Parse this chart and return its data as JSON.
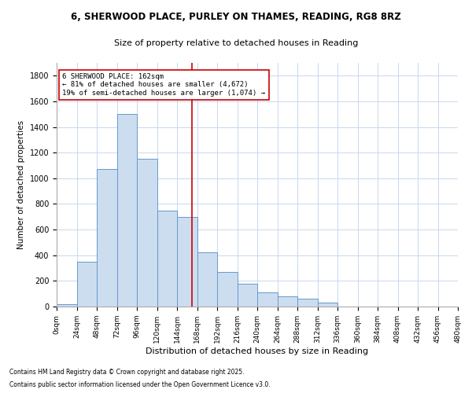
{
  "title_line1": "6, SHERWOOD PLACE, PURLEY ON THAMES, READING, RG8 8RZ",
  "title_line2": "Size of property relative to detached houses in Reading",
  "xlabel": "Distribution of detached houses by size in Reading",
  "ylabel": "Number of detached properties",
  "property_size": 162,
  "annotation_text": "6 SHERWOOD PLACE: 162sqm\n← 81% of detached houses are smaller (4,672)\n19% of semi-detached houses are larger (1,074) →",
  "footnote_line1": "Contains HM Land Registry data © Crown copyright and database right 2025.",
  "footnote_line2": "Contains public sector information licensed under the Open Government Licence v3.0.",
  "bar_color": "#ccddf0",
  "bar_edge_color": "#6699cc",
  "vline_color": "#cc0000",
  "annotation_box_color": "#cc0000",
  "background_color": "#ffffff",
  "grid_color": "#c8d8ee",
  "bin_edges": [
    0,
    24,
    48,
    72,
    96,
    120,
    144,
    168,
    192,
    216,
    240,
    264,
    288,
    312,
    336,
    360,
    384,
    408,
    432,
    456,
    480
  ],
  "bin_counts": [
    20,
    350,
    1075,
    1500,
    1150,
    750,
    700,
    420,
    270,
    175,
    110,
    80,
    60,
    30,
    0,
    0,
    0,
    0,
    0,
    0
  ],
  "ylim": [
    0,
    1900
  ],
  "yticks": [
    0,
    200,
    400,
    600,
    800,
    1000,
    1200,
    1400,
    1600,
    1800
  ],
  "figsize": [
    6.0,
    5.0
  ],
  "dpi": 100
}
